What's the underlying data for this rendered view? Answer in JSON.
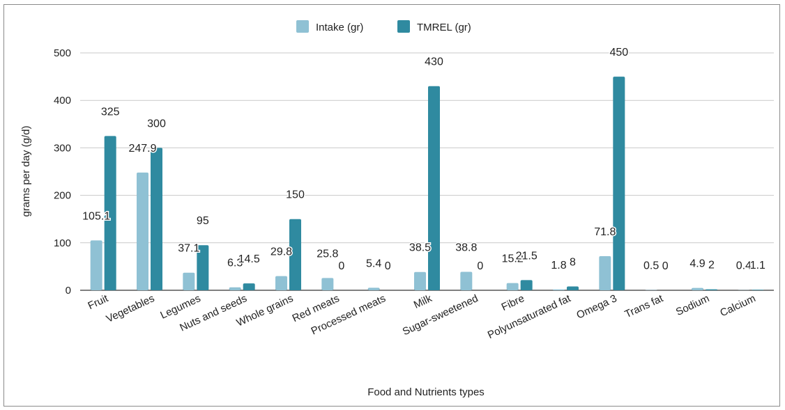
{
  "chart_data": {
    "type": "bar",
    "categories": [
      "Fruit",
      "Vegetables",
      "Legumes",
      "Nuts and seeds",
      "Whole grains",
      "Red meats",
      "Processed meats",
      "Milk",
      "Sugar-sweetened",
      "Fibre",
      "Polyunsaturated fat",
      "Omega 3",
      "Trans fat",
      "Sodium",
      "Calcium"
    ],
    "series": [
      {
        "name": "Intake (gr)",
        "color": "#8fc1d4",
        "values": [
          105.1,
          247.9,
          37.1,
          6.3,
          29.8,
          25.8,
          5.4,
          38.5,
          38.8,
          15.2,
          1.8,
          71.8,
          0.5,
          4.9,
          0.4
        ],
        "labels": [
          "105.1",
          "247.9",
          "37.1",
          "6.3",
          "29.8",
          "25.8",
          "5.4",
          "38.5",
          "38.8",
          "15.2",
          "1.8",
          "71.8",
          "0.5",
          "4.9",
          "0.4"
        ]
      },
      {
        "name": "TMREL (gr)",
        "color": "#2f8aa0",
        "values": [
          325,
          300,
          95,
          14.5,
          150,
          0,
          0,
          430,
          0,
          21.5,
          8,
          450,
          0,
          2,
          1.1
        ],
        "labels": [
          "325",
          "300",
          "95",
          "14.5",
          "150",
          "0",
          "0",
          "430",
          "0",
          "21.5",
          "8",
          "450",
          "0",
          "2",
          "1.1"
        ]
      }
    ],
    "title": "",
    "xlabel": "Food and Nutrients types",
    "ylabel": "grams per day (g/d)",
    "ylim": [
      0,
      500
    ],
    "yticks": [
      "0",
      "100",
      "200",
      "300",
      "400",
      "500"
    ],
    "grid": true,
    "legend_position": "top-center"
  }
}
